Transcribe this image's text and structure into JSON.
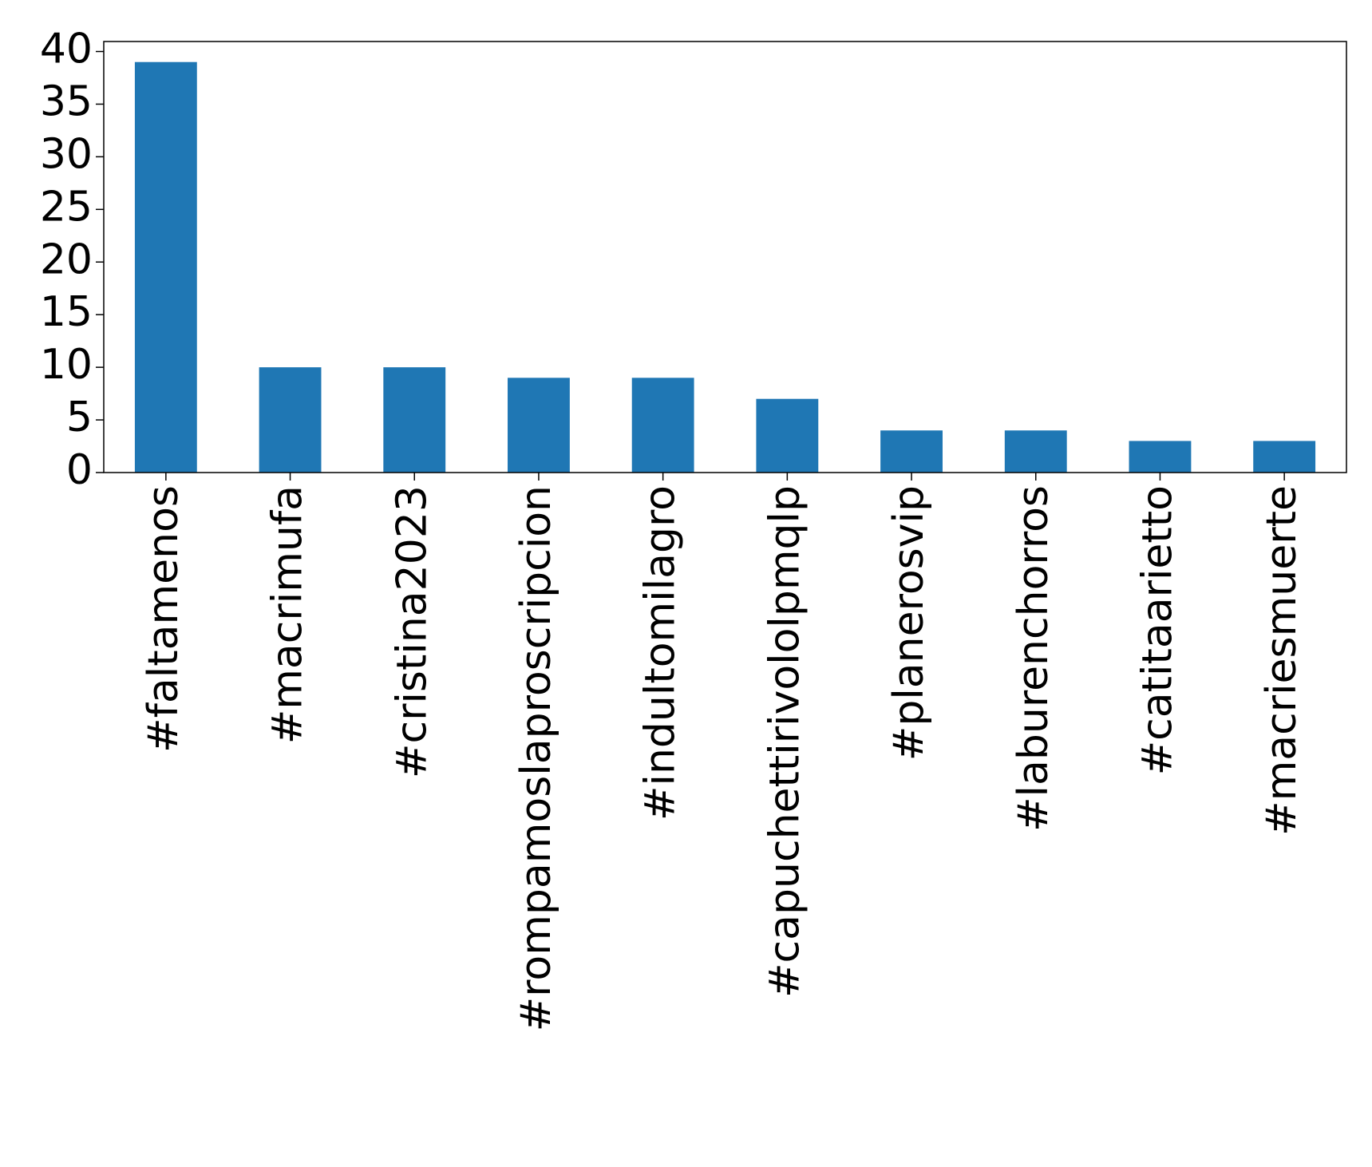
{
  "chart_data": {
    "type": "bar",
    "categories": [
      "#faltamenos",
      "#macrimufa",
      "#cristina2023",
      "#rompamoslaproscripcion",
      "#indultomilagro",
      "#capuchettirivololpmqlp",
      "#planerosvip",
      "#laburenchorros",
      "#catitaarietto",
      "#macriesmuerte"
    ],
    "values": [
      39,
      10,
      10,
      9,
      9,
      7,
      4,
      4,
      3,
      3
    ],
    "color": "#1f77b4",
    "ylim": [
      0,
      40.95
    ],
    "yticks": [
      0,
      5,
      10,
      15,
      20,
      25,
      30,
      35,
      40
    ],
    "grid": false
  }
}
